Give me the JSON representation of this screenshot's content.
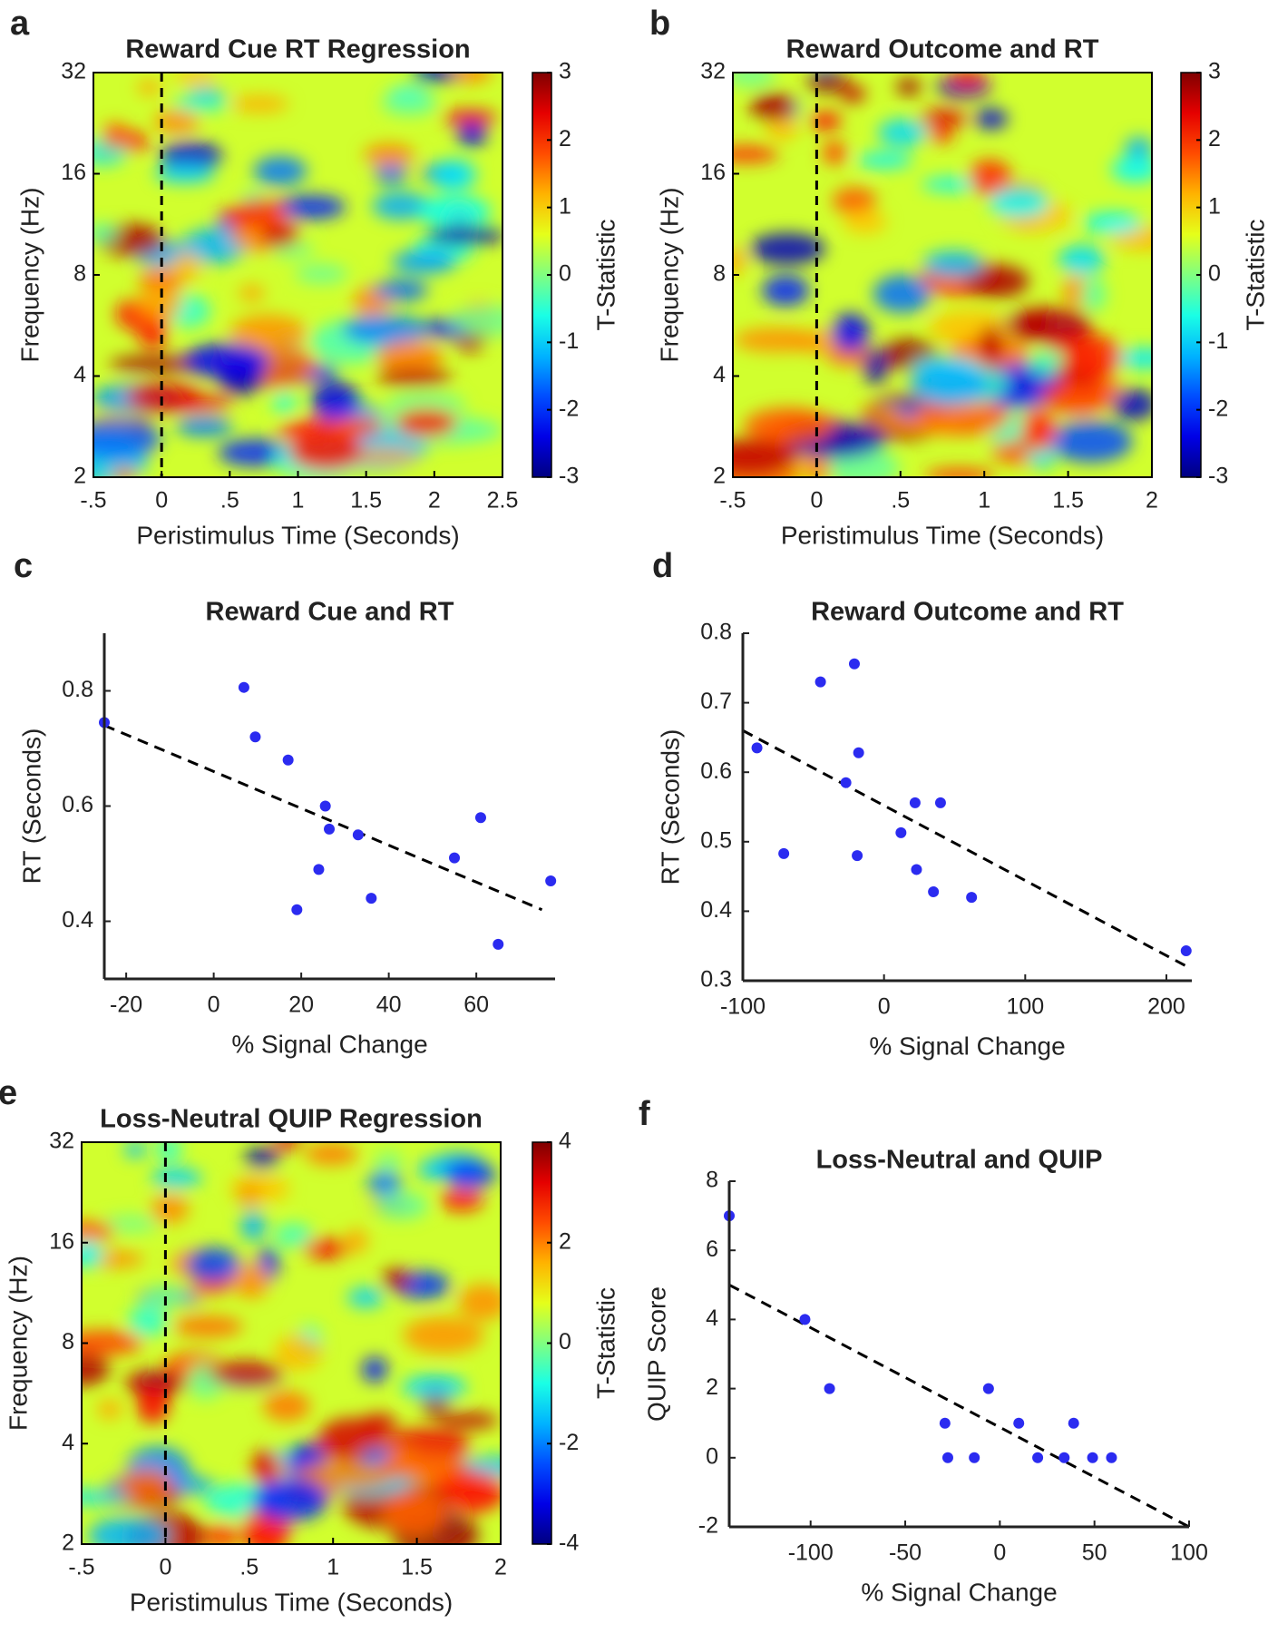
{
  "chart_data": [
    {
      "type": "heatmap",
      "panel": "a",
      "title": "Reward Cue RT Regression",
      "xlabel": "Peristimulus Time (Seconds)",
      "ylabel": "Frequency (Hz)",
      "colorbar_label": "T-Statistic",
      "xlim": [
        -0.5,
        2.5
      ],
      "xticks": [
        {
          "value": -0.5,
          "label": "-.5"
        },
        0,
        {
          "value": 0.5,
          "label": ".5"
        },
        1,
        1.5,
        2,
        2.5
      ],
      "ylim": [
        2,
        32
      ],
      "yticks": [
        2,
        4,
        8,
        16,
        32
      ],
      "log_y": true,
      "clim": [
        -3,
        3
      ],
      "cticks": [
        -3,
        -2,
        -1,
        0,
        1,
        2,
        3
      ],
      "colormap": "jet",
      "vline_x": 0
    },
    {
      "type": "heatmap",
      "panel": "b",
      "title": "Reward Outcome and RT",
      "xlabel": "Peristimulus Time (Seconds)",
      "ylabel": "Frequency (Hz)",
      "colorbar_label": "T-Statistic",
      "xlim": [
        -0.5,
        2
      ],
      "xticks": [
        {
          "value": -0.5,
          "label": "-.5"
        },
        0,
        {
          "value": 0.5,
          "label": ".5"
        },
        1,
        1.5,
        2
      ],
      "ylim": [
        2,
        32
      ],
      "yticks": [
        2,
        4,
        8,
        16,
        32
      ],
      "log_y": true,
      "clim": [
        -3,
        3
      ],
      "cticks": [
        -3,
        -2,
        -1,
        0,
        1,
        2,
        3
      ],
      "colormap": "jet",
      "vline_x": 0
    },
    {
      "type": "scatter",
      "panel": "c",
      "title": "Reward Cue and RT",
      "xlabel": "% Signal Change",
      "ylabel": "RT (Seconds)",
      "color": "#2b2bf0",
      "x": [
        -25,
        6.9,
        9.5,
        17,
        25.5,
        26.4,
        33,
        24,
        19,
        36,
        55,
        61,
        77,
        65
      ],
      "values": [
        0.745,
        0.806,
        0.72,
        0.68,
        0.6,
        0.56,
        0.55,
        0.49,
        0.42,
        0.44,
        0.51,
        0.58,
        0.47,
        0.36
      ],
      "xlim": [
        -25,
        78
      ],
      "ylim": [
        0.3,
        0.9
      ],
      "xticks": [
        -20,
        0,
        20,
        40,
        60
      ],
      "yticks": [
        0.4,
        0.6,
        0.8
      ],
      "trend_line": {
        "x": [
          -25,
          75
        ],
        "y": [
          0.74,
          0.42
        ]
      }
    },
    {
      "type": "scatter",
      "panel": "d",
      "title": "Reward Outcome and RT",
      "xlabel": "% Signal Change",
      "ylabel": "RT (Seconds)",
      "color": "#2b2bf0",
      "x": [
        -90,
        -71,
        -45,
        -27,
        -21,
        -18,
        -19,
        12,
        22,
        23,
        35,
        40,
        62,
        214
      ],
      "values": [
        0.635,
        0.483,
        0.73,
        0.585,
        0.756,
        0.628,
        0.48,
        0.513,
        0.556,
        0.46,
        0.428,
        0.556,
        0.42,
        0.343
      ],
      "xlim": [
        -100,
        218
      ],
      "ylim": [
        0.3,
        0.8
      ],
      "xticks": [
        -100,
        0,
        100,
        200
      ],
      "yticks": [
        0.3,
        0.4,
        0.5,
        0.6,
        0.7,
        0.8
      ],
      "trend_line": {
        "x": [
          -100,
          215
        ],
        "y": [
          0.66,
          0.32
        ]
      }
    },
    {
      "type": "heatmap",
      "panel": "e",
      "title": "Loss-Neutral QUIP Regression",
      "xlabel": "Peristimulus Time (Seconds)",
      "ylabel": "Frequency (Hz)",
      "colorbar_label": "T-Statistic",
      "xlim": [
        -0.5,
        2
      ],
      "xticks": [
        {
          "value": -0.5,
          "label": "-.5"
        },
        0,
        {
          "value": 0.5,
          "label": ".5"
        },
        1,
        1.5,
        2
      ],
      "ylim": [
        2,
        32
      ],
      "yticks": [
        2,
        4,
        8,
        16,
        32
      ],
      "log_y": true,
      "clim": [
        -4,
        4
      ],
      "cticks": [
        -4,
        -2,
        0,
        2,
        4
      ],
      "colormap": "jet",
      "vline_x": 0
    },
    {
      "type": "scatter",
      "panel": "f",
      "title": "Loss-Neutral and QUIP",
      "xlabel": "% Signal Change",
      "ylabel": "QUIP Score",
      "color": "#2b2bf0",
      "x": [
        -143,
        -103,
        -90,
        -29,
        -27.5,
        -13.5,
        -6,
        10,
        20,
        34,
        39,
        49,
        59
      ],
      "values": [
        7,
        4,
        2,
        1,
        0,
        0,
        2,
        1,
        0,
        0,
        1,
        0,
        0
      ],
      "xlim": [
        -143,
        100
      ],
      "ylim": [
        -2,
        8
      ],
      "xticks": [
        -100,
        -50,
        0,
        50,
        100
      ],
      "yticks": [
        -2,
        0,
        2,
        4,
        6,
        8
      ],
      "trend_line": {
        "x": [
          -143,
          100
        ],
        "y": [
          5,
          -2
        ]
      }
    }
  ]
}
